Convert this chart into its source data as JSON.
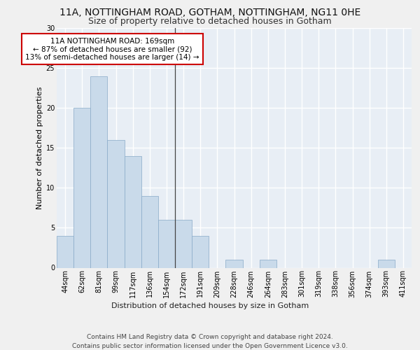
{
  "title_line1": "11A, NOTTINGHAM ROAD, GOTHAM, NOTTINGHAM, NG11 0HE",
  "title_line2": "Size of property relative to detached houses in Gotham",
  "xlabel": "Distribution of detached houses by size in Gotham",
  "ylabel": "Number of detached properties",
  "categories": [
    "44sqm",
    "62sqm",
    "81sqm",
    "99sqm",
    "117sqm",
    "136sqm",
    "154sqm",
    "172sqm",
    "191sqm",
    "209sqm",
    "228sqm",
    "246sqm",
    "264sqm",
    "283sqm",
    "301sqm",
    "319sqm",
    "338sqm",
    "356sqm",
    "374sqm",
    "393sqm",
    "411sqm"
  ],
  "values": [
    4,
    20,
    24,
    16,
    14,
    9,
    6,
    6,
    4,
    0,
    1,
    0,
    1,
    0,
    0,
    0,
    0,
    0,
    0,
    1,
    0
  ],
  "bar_color": "#c9daea",
  "bar_edge_color": "#88aac8",
  "vline_color": "#444444",
  "annotation_text": "11A NOTTINGHAM ROAD: 169sqm\n← 87% of detached houses are smaller (92)\n13% of semi-detached houses are larger (14) →",
  "annotation_box_facecolor": "#ffffff",
  "annotation_border_color": "#cc0000",
  "ylim": [
    0,
    30
  ],
  "yticks": [
    0,
    5,
    10,
    15,
    20,
    25,
    30
  ],
  "footer_text": "Contains HM Land Registry data © Crown copyright and database right 2024.\nContains public sector information licensed under the Open Government Licence v3.0.",
  "fig_bg_color": "#f0f0f0",
  "plot_bg_color": "#e8eef5",
  "grid_color": "#ffffff",
  "title_fontsize": 10,
  "subtitle_fontsize": 9,
  "axis_label_fontsize": 8,
  "tick_fontsize": 7,
  "annotation_fontsize": 7.5,
  "footer_fontsize": 6.5
}
